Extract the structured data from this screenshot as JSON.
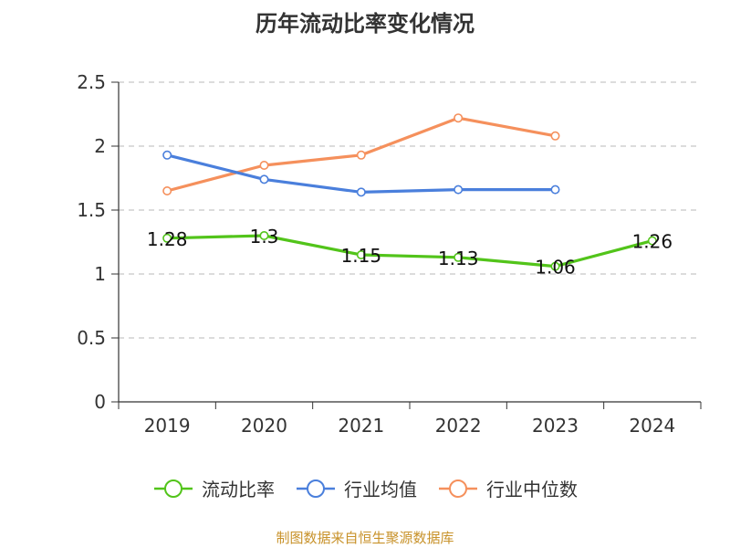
{
  "chart_data": {
    "type": "line",
    "title": "历年流动比率变化情况",
    "categories": [
      "2019",
      "2020",
      "2021",
      "2022",
      "2023",
      "2024"
    ],
    "ylim": [
      0,
      2.5
    ],
    "yticks": [
      "0",
      "0.5",
      "1",
      "1.5",
      "2",
      "2.5"
    ],
    "grid": true,
    "legend_position": "bottom",
    "series": [
      {
        "name": "流动比率",
        "color": "#52c41a",
        "values": [
          1.28,
          1.3,
          1.15,
          1.13,
          1.06,
          1.26
        ],
        "labels": [
          "1.28",
          "1.3",
          "1.15",
          "1.13",
          "1.06",
          "1.26"
        ]
      },
      {
        "name": "行业均值",
        "color": "#4a7fdc",
        "values": [
          1.93,
          1.74,
          1.64,
          1.66,
          1.66,
          null
        ]
      },
      {
        "name": "行业中位数",
        "color": "#f5905c",
        "values": [
          1.65,
          1.85,
          1.93,
          2.22,
          2.08,
          null
        ]
      }
    ]
  },
  "source": "制图数据来自恒生聚源数据库"
}
